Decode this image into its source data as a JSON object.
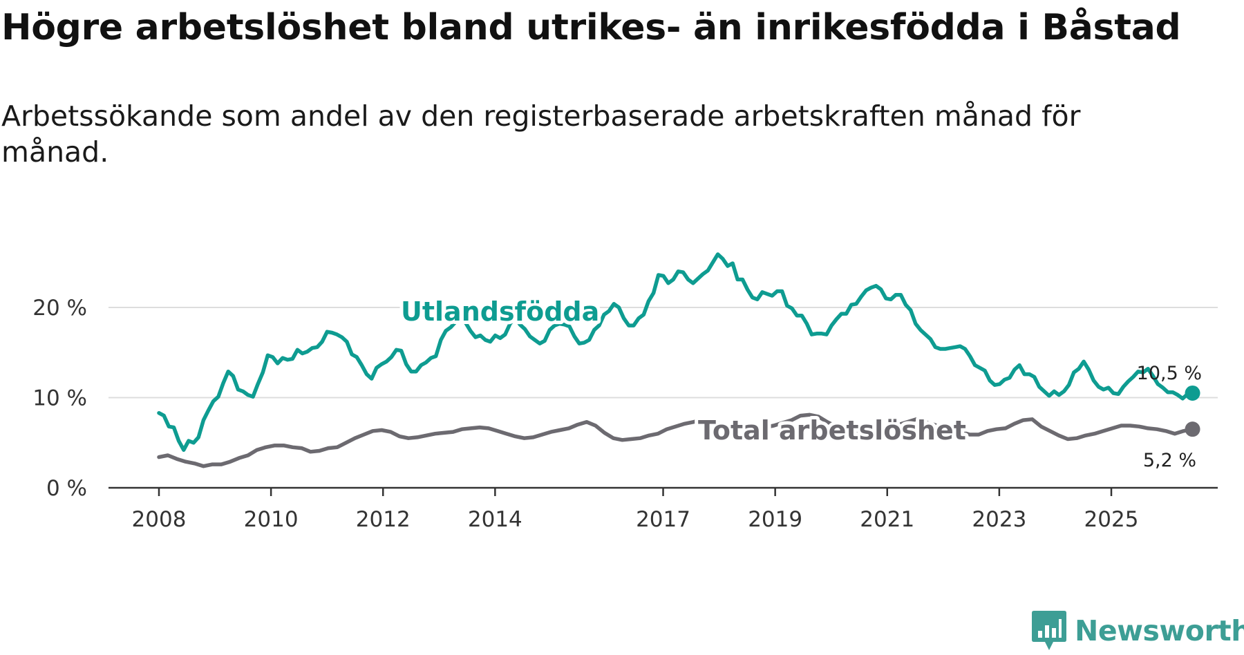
{
  "header": {
    "title": "Högre arbetslöshet bland utrikes- än inrikesfödda i Båstad",
    "subtitle": "Arbetssökande som andel av den registerbaserade arbetskraften månad för månad."
  },
  "colors": {
    "foreign_born": "#0e9c91",
    "total": "#6c6a70",
    "grid": "#dddddd",
    "axis": "#333333",
    "brand": "#3d9e95"
  },
  "brand": {
    "name": "Newsworthy",
    "icon": "bar-chart-speech-icon"
  },
  "chart_data": {
    "type": "line",
    "title": "Högre arbetslöshet bland utrikes- än inrikesfödda i Båstad",
    "subtitle": "Arbetssökande som andel av den registerbaserade arbetskraften månad för månad.",
    "xlabel": "",
    "ylabel": "",
    "x_unit": "year (decimal, monthly)",
    "xlim": [
      2007.6,
      2026.6
    ],
    "ylim": [
      0,
      25
    ],
    "grid": true,
    "legend": "inline labels",
    "x_ticks": [
      2008,
      2010,
      2012,
      2014,
      2017,
      2019,
      2021,
      2023,
      2025
    ],
    "x_tick_labels": [
      "2008",
      "2010",
      "2012",
      "2014",
      "2017",
      "2019",
      "2021",
      "2023",
      "2025"
    ],
    "y_ticks": [
      0,
      10,
      20
    ],
    "y_tick_labels": [
      "0 %",
      "10 %",
      "20 %"
    ],
    "end_x": 2026.45,
    "series": [
      {
        "name": "Utlandsfödda",
        "color": "#0e9c91",
        "end_label": "10,5 %",
        "x_start": 2008.0,
        "x_step": 0.08333,
        "values": [
          8.3,
          8.0,
          6.8,
          6.7,
          5.2,
          4.2,
          5.2,
          5.0,
          5.6,
          7.5,
          8.6,
          9.6,
          10.1,
          11.6,
          12.9,
          12.4,
          10.9,
          10.7,
          10.3,
          10.1,
          11.5,
          12.8,
          14.7,
          14.5,
          13.8,
          14.4,
          14.2,
          14.3,
          15.3,
          14.9,
          15.1,
          15.5,
          15.6,
          16.2,
          17.3,
          17.2,
          17.0,
          16.7,
          16.2,
          14.8,
          14.5,
          13.6,
          12.6,
          12.1,
          13.3,
          13.7,
          14.0,
          14.5,
          15.3,
          15.2,
          13.7,
          12.9,
          12.9,
          13.6,
          13.9,
          14.4,
          14.6,
          16.4,
          17.4,
          17.8,
          18.4,
          18.6,
          18.3,
          17.4,
          16.7,
          16.9,
          16.4,
          16.2,
          16.9,
          16.6,
          17.0,
          18.2,
          18.9,
          18.1,
          17.6,
          16.8,
          16.4,
          16.0,
          16.3,
          17.5,
          18.0,
          18.2,
          18.1,
          17.9,
          16.8,
          16.0,
          16.1,
          16.4,
          17.5,
          18.0,
          19.2,
          19.6,
          20.4,
          20.0,
          18.8,
          18.0,
          18.0,
          18.8,
          19.2,
          20.7,
          21.6,
          23.6,
          23.5,
          22.7,
          23.1,
          24.0,
          23.9,
          23.1,
          22.7,
          23.2,
          23.7,
          24.1,
          25.0,
          25.9,
          25.4,
          24.6,
          24.9,
          23.1,
          23.1,
          22.0,
          21.1,
          20.9,
          21.7,
          21.5,
          21.3,
          21.8,
          21.8,
          20.2,
          19.9,
          19.1,
          19.1,
          18.2,
          17.0,
          17.1,
          17.1,
          17.0,
          18.0,
          18.7,
          19.3,
          19.3,
          20.3,
          20.4,
          21.2,
          21.9,
          22.2,
          22.4,
          22.0,
          21.0,
          20.9,
          21.4,
          21.4,
          20.3,
          19.7,
          18.2,
          17.5,
          17.0,
          16.5,
          15.6,
          15.4,
          15.4,
          15.5,
          15.6,
          15.7,
          15.4,
          14.6,
          13.6,
          13.3,
          13.0,
          11.9,
          11.4,
          11.5,
          12.0,
          12.2,
          13.1,
          13.6,
          12.6,
          12.6,
          12.3,
          11.2,
          10.7,
          10.2,
          10.7,
          10.3,
          10.7,
          11.4,
          12.8,
          13.2,
          14.0,
          13.1,
          11.9,
          11.2,
          10.9,
          11.1,
          10.5,
          10.4,
          11.2,
          11.8,
          12.3,
          12.9,
          12.8,
          13.2,
          12.4,
          11.5,
          11.1,
          10.6,
          10.6,
          10.3,
          9.9,
          10.4,
          10.5
        ]
      },
      {
        "name": "Total arbetslöshet",
        "color": "#6c6a70",
        "end_label": "5,2 %",
        "x_start": 2008.0,
        "x_step": 0.08333,
        "values": [
          3.4,
          3.6,
          3.2,
          2.9,
          2.7,
          2.4,
          2.6,
          2.6,
          2.9,
          3.3,
          3.6,
          4.2,
          4.5,
          4.7,
          4.7,
          4.5,
          4.4,
          4.0,
          4.1,
          4.4,
          4.5,
          5.0,
          5.5,
          5.9,
          6.3,
          6.4,
          6.2,
          5.7,
          5.5,
          5.6,
          5.8,
          6.0,
          6.1,
          6.2,
          6.5,
          6.6,
          6.7,
          6.6,
          6.3,
          6.0,
          5.7,
          5.5,
          5.6,
          5.9,
          6.2,
          6.4,
          6.6,
          7.0,
          7.3,
          6.9,
          6.1,
          5.5,
          5.3,
          5.4,
          5.5,
          5.8,
          6.0,
          6.5,
          6.8,
          7.1,
          7.3,
          7.6,
          7.5,
          7.1,
          6.7,
          6.5,
          6.6,
          6.5,
          6.7,
          6.9,
          7.2,
          7.5,
          8.0,
          8.1,
          7.9,
          7.3,
          6.8,
          6.5,
          6.4,
          6.1,
          6.5,
          6.6,
          6.8,
          7.0,
          7.3,
          7.6,
          7.3,
          7.0,
          6.6,
          6.4,
          6.2,
          5.9,
          5.9,
          6.3,
          6.5,
          6.6,
          7.1,
          7.5,
          7.6,
          6.8,
          6.3,
          5.8,
          5.4,
          5.5,
          5.8,
          6.0,
          6.3,
          6.6,
          6.9,
          6.9,
          6.8,
          6.6,
          6.5,
          6.3,
          6.0,
          6.3,
          6.5
        ]
      }
    ]
  }
}
